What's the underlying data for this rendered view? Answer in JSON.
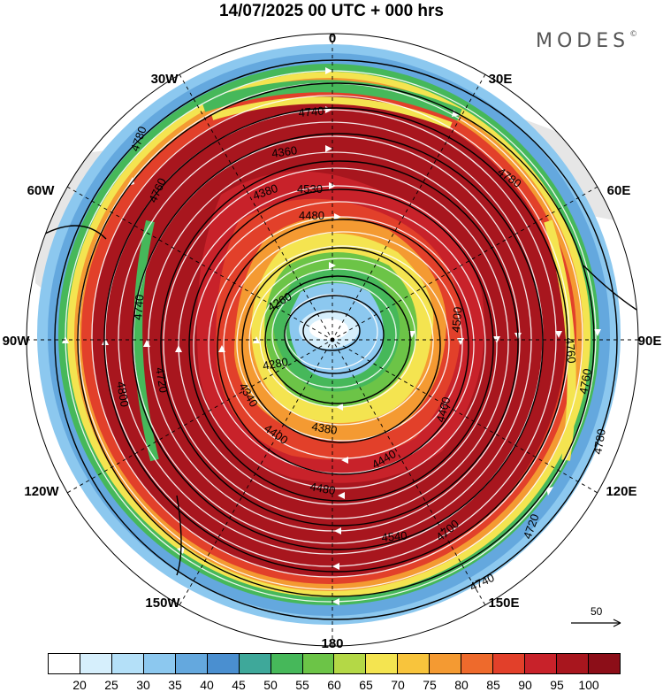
{
  "title": "14/07/2025  00 UTC  + 000 hrs",
  "brand": "MODES",
  "brand_mark": "©",
  "longitude_labels": [
    "0",
    "30E",
    "60E",
    "90E",
    "120E",
    "150E",
    "180",
    "150W",
    "120W",
    "90W",
    "60W",
    "30W"
  ],
  "contour_labels": [
    {
      "text": "4740"
    },
    {
      "text": "4780"
    },
    {
      "text": "4760"
    },
    {
      "text": "4360"
    },
    {
      "text": "4530"
    },
    {
      "text": "4480"
    },
    {
      "text": "4380"
    },
    {
      "text": "4260"
    },
    {
      "text": "4340"
    },
    {
      "text": "4280"
    },
    {
      "text": "4400"
    },
    {
      "text": "4380"
    },
    {
      "text": "4440"
    },
    {
      "text": "4460"
    },
    {
      "text": "4500"
    },
    {
      "text": "4480"
    },
    {
      "text": "4540"
    },
    {
      "text": "4700"
    },
    {
      "text": "4720"
    },
    {
      "text": "4740"
    },
    {
      "text": "4760"
    },
    {
      "text": "4780"
    },
    {
      "text": "4800"
    },
    {
      "text": "4720"
    },
    {
      "text": "4740"
    },
    {
      "text": "4760"
    },
    {
      "text": "4780"
    }
  ],
  "colorbar": {
    "colors": [
      "#ffffff",
      "#d6effc",
      "#b4e0f8",
      "#8cc8ef",
      "#64a8de",
      "#4a8fd0",
      "#3ea89a",
      "#46b85a",
      "#6cc447",
      "#b4d846",
      "#f4e450",
      "#f8c43c",
      "#f49a32",
      "#ee6a2c",
      "#e2402a",
      "#c8222a",
      "#a8161e",
      "#8c0e18"
    ],
    "tick_labels": [
      "20",
      "25",
      "30",
      "35",
      "40",
      "45",
      "50",
      "55",
      "60",
      "65",
      "70",
      "75",
      "80",
      "85",
      "90",
      "95",
      "100"
    ]
  },
  "reference_vector": {
    "label": "50"
  },
  "colors": {
    "land": "#e6e6e6",
    "contour": "#000000",
    "streamline": "#ffffff"
  }
}
